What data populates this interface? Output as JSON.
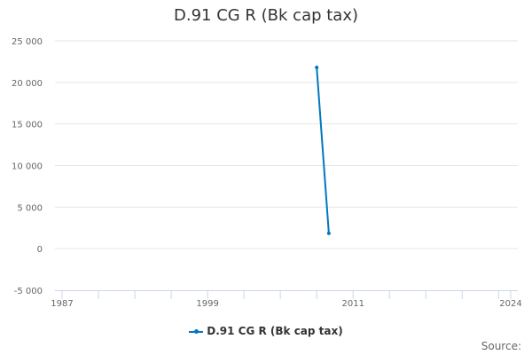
{
  "chart_data": {
    "type": "line",
    "title": "D.91 CG R (Bk cap tax)",
    "xlabel": "",
    "ylabel": "",
    "xlim": [
      1987,
      2024
    ],
    "ylim": [
      -5000,
      25000
    ],
    "x_tick_labels": [
      "1987",
      "1999",
      "2011",
      "2024"
    ],
    "y_ticks": [
      -5000,
      0,
      5000,
      10000,
      15000,
      20000,
      25000
    ],
    "y_tick_labels": [
      "-5 000",
      "0",
      "5 000",
      "10 000",
      "15 000",
      "20 000",
      "25 000"
    ],
    "grid": true,
    "legend": "bottom",
    "series": [
      {
        "name": "D.91 CG R (Bk cap tax)",
        "color": "#0077c0",
        "x": [
          2008,
          2009
        ],
        "values": [
          21800,
          1850
        ]
      }
    ]
  },
  "credits": "Source:"
}
